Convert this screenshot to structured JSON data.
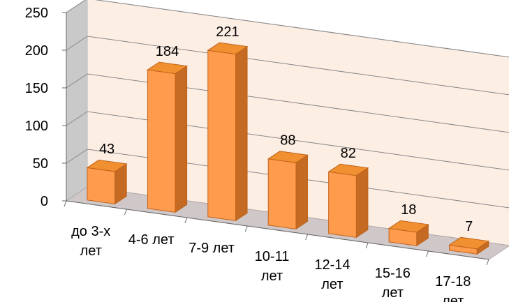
{
  "chart_data": {
    "type": "bar",
    "categories": [
      [
        "до 3-х",
        "лет"
      ],
      [
        "4-6 лет"
      ],
      [
        "7-9 лет"
      ],
      [
        "10-11",
        "лет"
      ],
      [
        "12-14",
        "лет"
      ],
      [
        "15-16",
        "лет"
      ],
      [
        "17-18",
        "лет"
      ]
    ],
    "values": [
      43,
      184,
      221,
      88,
      82,
      18,
      7
    ],
    "data_labels": [
      "43",
      "184",
      "221",
      "88",
      "82",
      "18",
      "7"
    ],
    "y_ticks": [
      "0",
      "50",
      "100",
      "150",
      "200",
      "250"
    ],
    "ylim": [
      0,
      250
    ],
    "title": "",
    "xlabel": "",
    "ylabel": "",
    "grid": true,
    "legend": "none",
    "three_d": true,
    "colors": {
      "bar_front": "#FF9B4D",
      "bar_top": "#F09030",
      "bar_side": "#C46A22",
      "bar_edge": "#C0641B",
      "back_wall": "#FDEEE4",
      "side_wall": "#C9C9C9",
      "floor": "#D0C8C8",
      "gridline": "#888888"
    }
  }
}
